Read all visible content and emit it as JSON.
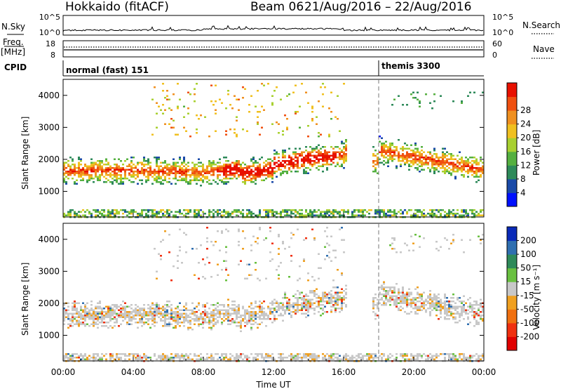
{
  "header": {
    "station": "Hokkaido (fitACF)",
    "beam": "Beam 06",
    "dates": "21/Aug/2016 – 22/Aug/2016"
  },
  "top_panels": {
    "nsky": {
      "label": "N.Sky",
      "left_ticks": [
        "10^5",
        "10^0"
      ],
      "right_ticks": [
        "10^5",
        "10^0"
      ],
      "right_label": "N.Search",
      "right_label_style": "dotted-underline"
    },
    "freq": {
      "label_lines": [
        "Freq.",
        "[MHz]"
      ],
      "left_ticks": [
        "18",
        "8"
      ],
      "right_ticks": [
        "60",
        "0"
      ],
      "right_label": "Nave",
      "right_label_style": "dotted-underline"
    },
    "cpid": {
      "label": "CPID",
      "modes": [
        {
          "name": "normal (fast) 151",
          "start_hour": 0
        },
        {
          "name": "themis 3300",
          "start_hour": 18
        }
      ]
    }
  },
  "chart_data": [
    {
      "type": "heatmap",
      "name": "power",
      "ylabel": "Slant Range [km]",
      "yticks": [
        1000,
        2000,
        3000,
        4000
      ],
      "ylim": [
        200,
        4500
      ],
      "xlim": [
        0,
        24
      ],
      "xtick_labels": [
        "00:00",
        "04:00",
        "08:00",
        "12:00",
        "16:00",
        "20:00",
        "00:00"
      ],
      "colorbar": {
        "label": "Power [dB]",
        "ticks": [
          "4",
          "8",
          "12",
          "16",
          "20",
          "24",
          "28"
        ],
        "colors": [
          "#0010ff",
          "#1a4aa8",
          "#2e8a5a",
          "#55b040",
          "#a8d030",
          "#f0c020",
          "#f09020",
          "#f05010",
          "#e81000"
        ]
      },
      "marker_line_hour": 18
    },
    {
      "type": "heatmap",
      "name": "velocity",
      "ylabel": "Slant Range [km]",
      "yticks": [
        1000,
        2000,
        3000,
        4000
      ],
      "ylim": [
        200,
        4500
      ],
      "xlim": [
        0,
        24
      ],
      "xtick_labels": [
        "00:00",
        "04:00",
        "08:00",
        "12:00",
        "16:00",
        "20:00",
        "00:00"
      ],
      "xlabel": "Time UT",
      "colorbar": {
        "label": "Velocity [m s⁻¹]",
        "ticks": [
          "200",
          "100",
          "50",
          "15",
          "-15",
          "-50",
          "-100",
          "-200"
        ],
        "colors": [
          "#0a2ab8",
          "#2f6fb0",
          "#2e8a5a",
          "#69c040",
          "#c8c8c8",
          "#f0a020",
          "#f07010",
          "#f03010",
          "#e00000"
        ]
      },
      "marker_line_hour": 18
    }
  ]
}
